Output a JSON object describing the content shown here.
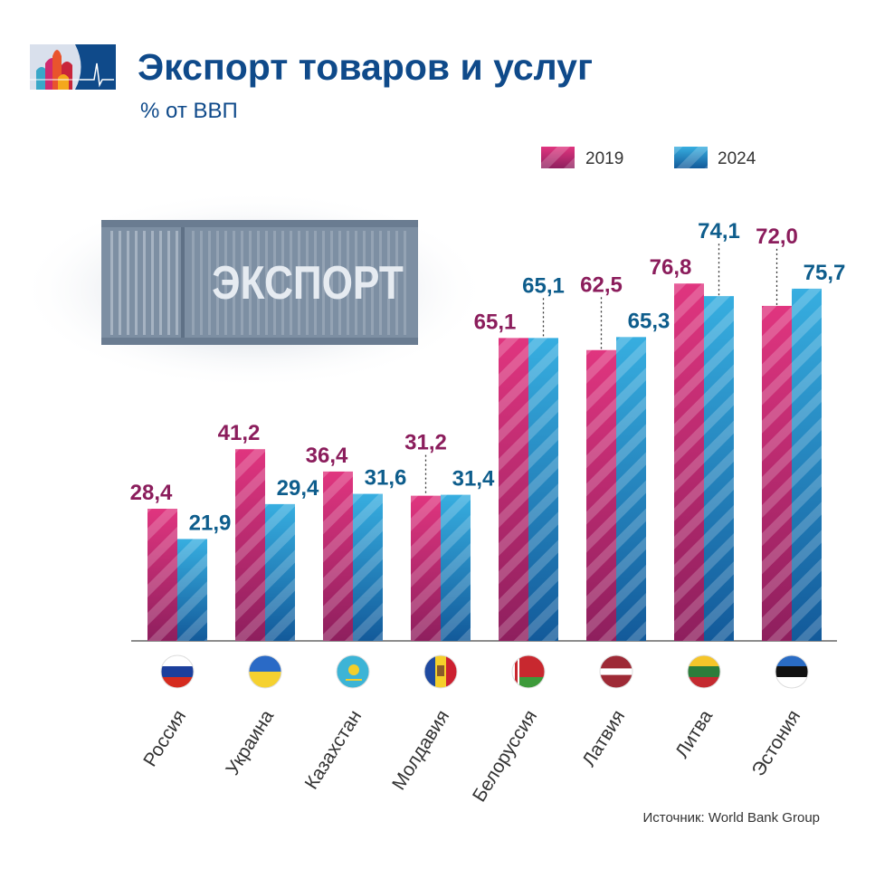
{
  "header": {
    "title": "Экспорт товаров и услуг",
    "subtitle": "% от ВВП"
  },
  "illustration": {
    "container_text": "ЭКСПОРТ"
  },
  "source": "Источник: World Bank Group",
  "colors": {
    "2019": "#c2266e",
    "2024": "#1c86c2",
    "label_2019": "#8b1d5c",
    "label_2024": "#0e5d8c",
    "title": "#0f4a8a"
  },
  "chart_data": {
    "type": "bar",
    "categories": [
      "Россия",
      "Украина",
      "Казахстан",
      "Молдавия",
      "Белоруссия",
      "Латвия",
      "Литва",
      "Эстония"
    ],
    "flags": [
      "russia-flag",
      "ukraine-flag",
      "kazakhstan-flag",
      "moldova-flag",
      "belarus-flag",
      "latvia-flag",
      "lithuania-flag",
      "estonia-flag"
    ],
    "series": [
      {
        "name": "2019",
        "values": [
          28.4,
          41.2,
          36.4,
          31.2,
          65.1,
          62.5,
          76.8,
          72.0
        ],
        "labels": [
          "28,4",
          "41,2",
          "36,4",
          "31,2",
          "65,1",
          "62,5",
          "76,8",
          "72,0"
        ]
      },
      {
        "name": "2024",
        "values": [
          21.9,
          29.4,
          31.6,
          31.4,
          65.1,
          65.3,
          74.1,
          75.7
        ],
        "labels": [
          "21,9",
          "29,4",
          "31,6",
          "31,4",
          "65,1",
          "65,3",
          "74,1",
          "75,7"
        ]
      }
    ],
    "title": "Экспорт товаров и услуг",
    "ylabel": "% от ВВП",
    "ylim": [
      0,
      80
    ],
    "grid": false,
    "legend": "top-right"
  }
}
